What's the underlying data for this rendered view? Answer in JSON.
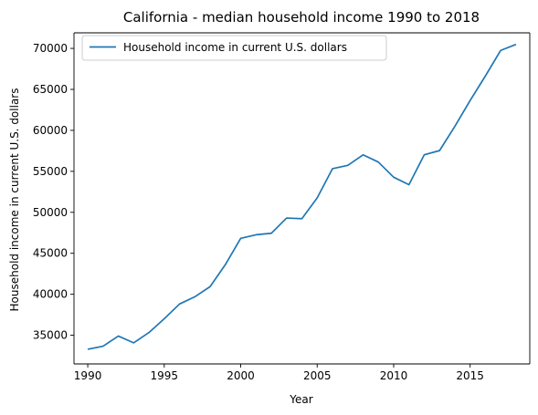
{
  "chart_data": {
    "type": "line",
    "title": "California - median household income 1990 to 2018",
    "xlabel": "Year",
    "ylabel": "Household income in current U.S. dollars",
    "xlim": [
      1989.1,
      2018.9
    ],
    "ylim": [
      31500,
      71900
    ],
    "xticks": [
      1990,
      1995,
      2000,
      2005,
      2010,
      2015
    ],
    "yticks": [
      35000,
      40000,
      45000,
      50000,
      55000,
      60000,
      65000,
      70000
    ],
    "grid": false,
    "legend_position": "upper-left",
    "series": [
      {
        "name": "Household income in current U.S. dollars",
        "color": "#1f77b4",
        "x": [
          1990,
          1991,
          1992,
          1993,
          1994,
          1995,
          1996,
          1997,
          1998,
          1999,
          2000,
          2001,
          2002,
          2003,
          2004,
          2005,
          2006,
          2007,
          2008,
          2009,
          2010,
          2011,
          2012,
          2013,
          2014,
          2015,
          2016,
          2017,
          2018
        ],
        "y": [
          33290,
          33660,
          34900,
          34070,
          35330,
          37010,
          38810,
          39690,
          40930,
          43630,
          46820,
          47260,
          47440,
          49300,
          49220,
          51760,
          55320,
          55730,
          57010,
          56130,
          54280,
          53370,
          57020,
          57530,
          60490,
          63640,
          66640,
          69760,
          70490
        ]
      }
    ]
  }
}
